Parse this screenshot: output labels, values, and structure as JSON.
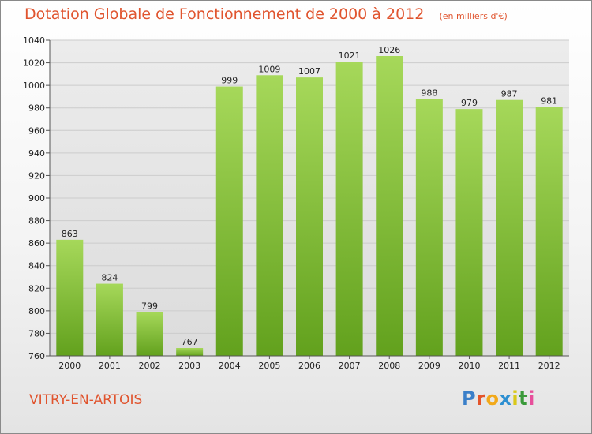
{
  "header": {
    "title": "Dotation Globale de Fonctionnement de 2000 à 2012",
    "unit": "(en milliers d'€)"
  },
  "footer": {
    "commune": "VITRY-EN-ARTOIS",
    "logo_text": "Proxiti",
    "logo_colors": [
      "#3a7fc9",
      "#e4542a",
      "#f2a91a",
      "#2d8fd1",
      "#d9c81a",
      "#3a9a3a",
      "#e74f9b"
    ]
  },
  "colors": {
    "bar_light": "#a6d85a",
    "bar_dark": "#62a11d",
    "grid": "#cccccc",
    "title": "#e0542e"
  },
  "chart_data": {
    "type": "bar",
    "title": "Dotation Globale de Fonctionnement de 2000 à 2012",
    "subtitle": "(en milliers d'€)",
    "categories": [
      "2000",
      "2001",
      "2002",
      "2003",
      "2004",
      "2005",
      "2006",
      "2007",
      "2008",
      "2009",
      "2010",
      "2011",
      "2012"
    ],
    "values": [
      863,
      824,
      799,
      767,
      999,
      1009,
      1007,
      1021,
      1026,
      988,
      979,
      987,
      981
    ],
    "ylim": [
      760,
      1040
    ],
    "yticks": [
      760,
      780,
      800,
      820,
      840,
      860,
      880,
      900,
      920,
      940,
      960,
      980,
      1000,
      1020,
      1040
    ],
    "grid": true,
    "legend": "none"
  }
}
